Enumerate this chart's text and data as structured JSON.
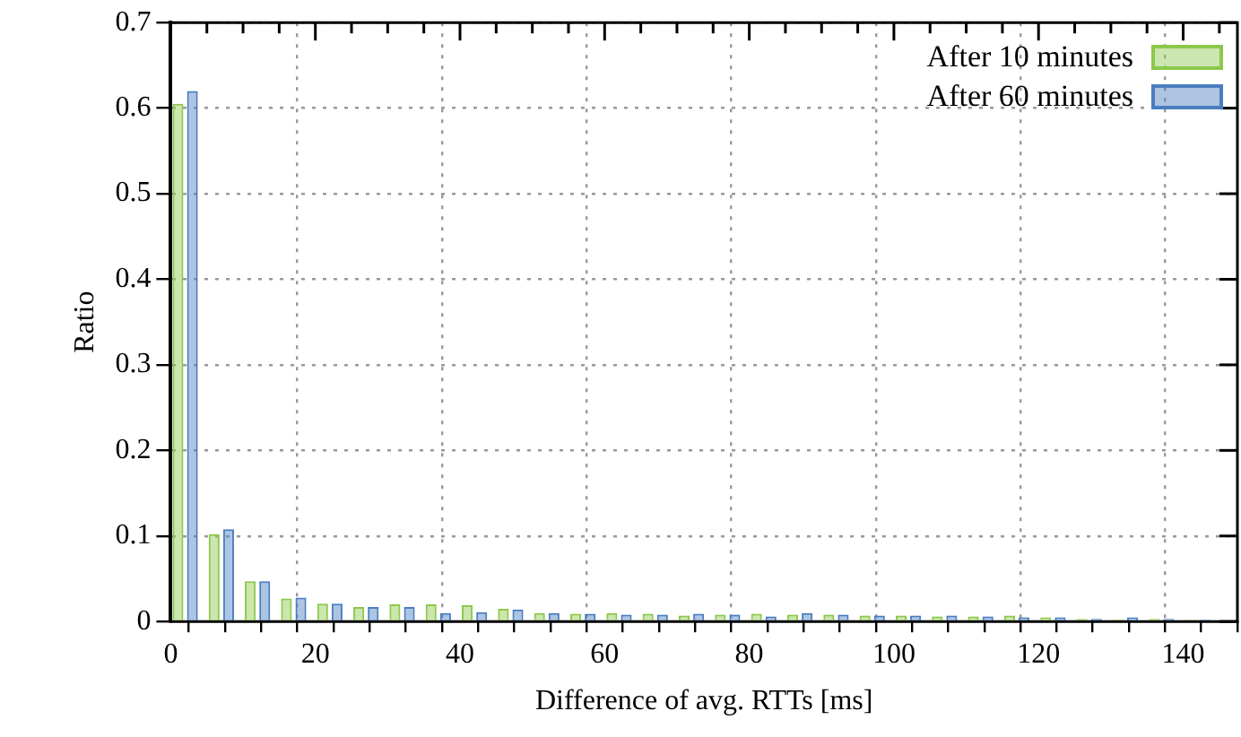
{
  "chart_data": {
    "type": "bar",
    "xlabel": "Difference of avg. RTTs [ms]",
    "ylabel": "Ratio",
    "series": [
      {
        "name": "After 10 minutes",
        "color": "#8cc84b",
        "x": [
          1,
          6,
          11,
          16,
          21,
          26,
          31,
          36,
          41,
          46,
          51,
          56,
          61,
          66,
          71,
          76,
          81,
          86,
          91,
          96,
          101,
          106,
          111,
          116,
          121,
          126,
          131,
          136,
          141
        ],
        "values": [
          0.605,
          0.102,
          0.047,
          0.027,
          0.021,
          0.017,
          0.02,
          0.02,
          0.019,
          0.015,
          0.01,
          0.009,
          0.01,
          0.009,
          0.007,
          0.008,
          0.009,
          0.008,
          0.008,
          0.007,
          0.007,
          0.006,
          0.006,
          0.007,
          0.005,
          0.003,
          0.002,
          0.003,
          0.002
        ]
      },
      {
        "name": "After 60 minutes",
        "color": "#4a7ec0",
        "x": [
          3,
          8,
          13,
          18,
          23,
          28,
          33,
          38,
          43,
          48,
          53,
          58,
          63,
          68,
          73,
          78,
          83,
          88,
          93,
          98,
          103,
          108,
          113,
          118,
          123,
          128,
          133,
          138,
          143
        ],
        "values": [
          0.62,
          0.108,
          0.047,
          0.028,
          0.021,
          0.017,
          0.017,
          0.01,
          0.011,
          0.014,
          0.01,
          0.009,
          0.008,
          0.008,
          0.009,
          0.008,
          0.006,
          0.01,
          0.008,
          0.007,
          0.007,
          0.007,
          0.006,
          0.005,
          0.005,
          0.003,
          0.005,
          0.003,
          0.002
        ]
      }
    ],
    "xlim": [
      0,
      147.5
    ],
    "xticks": [
      0,
      {
        "value": 5,
        "label": null
      },
      {
        "value": 10,
        "label": null
      },
      {
        "value": 15,
        "label": null
      },
      20,
      {
        "value": 25,
        "label": null
      },
      {
        "value": 30,
        "label": null
      },
      {
        "value": 35,
        "label": null
      },
      40,
      {
        "value": 45,
        "label": null
      },
      {
        "value": 50,
        "label": null
      },
      {
        "value": 55,
        "label": null
      },
      60,
      {
        "value": 65,
        "label": null
      },
      {
        "value": 70,
        "label": null
      },
      {
        "value": 75,
        "label": null
      },
      80,
      {
        "value": 85,
        "label": null
      },
      {
        "value": 90,
        "label": null
      },
      {
        "value": 95,
        "label": null
      },
      100,
      {
        "value": 105,
        "label": null
      },
      {
        "value": 110,
        "label": null
      },
      {
        "value": 115,
        "label": null
      },
      120,
      {
        "value": 125,
        "label": null
      },
      {
        "value": 130,
        "label": null
      },
      {
        "value": 135,
        "label": null
      },
      140,
      {
        "value": 145,
        "label": null
      }
    ],
    "ylim": [
      0,
      0.7
    ],
    "yticks": [
      0,
      0.1,
      0.2,
      0.3,
      0.4,
      0.5,
      0.6,
      0.7
    ],
    "grid": true,
    "legend": "top right"
  }
}
